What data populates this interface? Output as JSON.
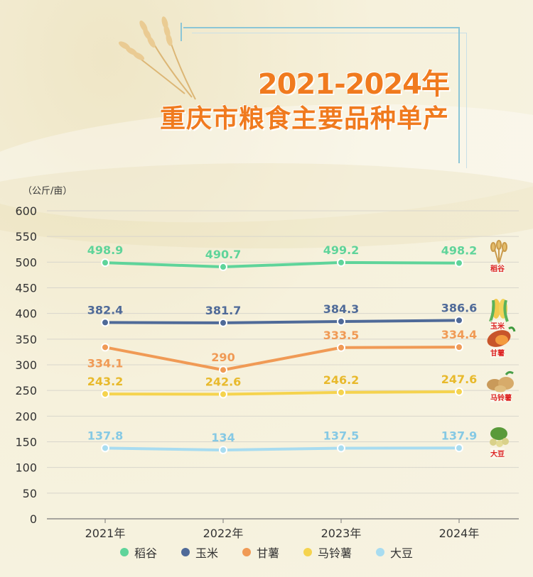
{
  "title": {
    "line1": "2021-2024年",
    "line2": "重庆市粮食主要品种单产"
  },
  "chart_data": {
    "type": "line",
    "unit_label": "（公斤/亩）",
    "categories": [
      "2021年",
      "2022年",
      "2023年",
      "2024年"
    ],
    "ylim": [
      0,
      600
    ],
    "yticks": [
      0,
      50,
      100,
      150,
      200,
      250,
      300,
      350,
      400,
      450,
      500,
      550,
      600
    ],
    "grid": true,
    "legend_position": "bottom",
    "series": [
      {
        "name": "稻谷",
        "color": "#5fd49a",
        "values": [
          498.9,
          490.7,
          499.2,
          498.2
        ],
        "labels": [
          "498.9",
          "490.7",
          "499.2",
          "498.2"
        ],
        "label_pos": [
          "above",
          "above",
          "above",
          "above"
        ]
      },
      {
        "name": "玉米",
        "color": "#4f6a98",
        "values": [
          382.4,
          381.7,
          384.3,
          386.6
        ],
        "labels": [
          "382.4",
          "381.7",
          "384.3",
          "386.6"
        ],
        "label_pos": [
          "above",
          "above",
          "above",
          "above"
        ]
      },
      {
        "name": "甘薯",
        "color": "#f09a55",
        "values": [
          334.1,
          290,
          333.5,
          334.4
        ],
        "labels": [
          "334.1",
          "290",
          "333.5",
          "334.4"
        ],
        "label_pos": [
          "below",
          "above",
          "above",
          "above"
        ]
      },
      {
        "name": "马铃薯",
        "color": "#f5d34e",
        "values": [
          243.2,
          242.6,
          246.2,
          247.6
        ],
        "labels": [
          "243.2",
          "242.6",
          "246.2",
          "247.6"
        ],
        "label_pos": [
          "above",
          "above",
          "above",
          "above"
        ]
      },
      {
        "name": "大豆",
        "color": "#a8dcf0",
        "values": [
          137.8,
          134,
          137.5,
          137.9
        ],
        "labels": [
          "137.8",
          "134",
          "137.5",
          "137.9"
        ],
        "label_pos": [
          "above",
          "above",
          "above",
          "above"
        ]
      }
    ]
  },
  "crop_icons": [
    {
      "icon": "rice-icon",
      "label": "稻谷"
    },
    {
      "icon": "corn-icon",
      "label": "玉米"
    },
    {
      "icon": "sweet-potato-icon",
      "label": "甘薯"
    },
    {
      "icon": "potato-icon",
      "label": "马铃薯"
    },
    {
      "icon": "soybean-icon",
      "label": "大豆"
    }
  ]
}
